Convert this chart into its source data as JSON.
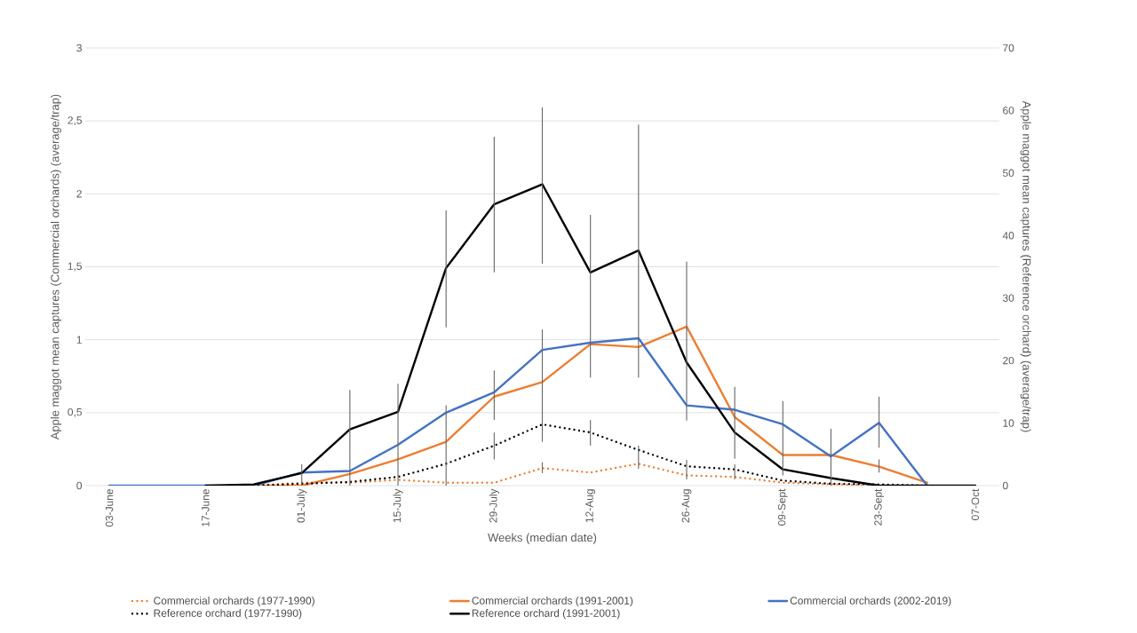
{
  "chart_data": {
    "type": "line",
    "xlabel": "Weeks (median date)",
    "ylabel": "Apple maggot mean captures (Commercial orchards) (average/trap)",
    "y2label": "Apple maggot mean captures (Reference orchard) (average/trap)",
    "categories": [
      "03-June",
      null,
      "17-June",
      null,
      "01-July",
      null,
      "15-July",
      null,
      "29-July",
      null,
      "12-Aug",
      null,
      "26-Aug",
      null,
      "09-Sept",
      null,
      "23-Sept",
      null,
      "07-Oct"
    ],
    "ylim": [
      0,
      3
    ],
    "yticks": [
      0,
      {
        "value": 0.5,
        "label": "0,5"
      },
      1,
      {
        "value": 1.5,
        "label": "1,5"
      },
      2,
      {
        "value": 2.5,
        "label": "2,5"
      },
      3
    ],
    "y2lim": [
      0,
      70
    ],
    "y2ticks": [
      0,
      10,
      20,
      30,
      40,
      50,
      60,
      70
    ],
    "grid": "y",
    "legend": "bottom",
    "series": [
      {
        "name": "Commercial orchards (1977-1990)",
        "color": "#ed7d31",
        "line_style": "dotted",
        "values": [
          null,
          null,
          null,
          0,
          0.02,
          0.02,
          0.04,
          0.02,
          0.02,
          0.12,
          0.09,
          0.15,
          0.07,
          0.06,
          0.02,
          0.01,
          0,
          null,
          null
        ],
        "errors": [
          null,
          null,
          null,
          null,
          null,
          null,
          null,
          null,
          null,
          [
            0.085,
            0.16
          ],
          null,
          null,
          null,
          null,
          null,
          null,
          null,
          null,
          null
        ]
      },
      {
        "name": "Commercial orchards (1991-2001)",
        "color": "#ed7d31",
        "line_style": "solid",
        "values": [
          null,
          null,
          null,
          0,
          0,
          0.08,
          0.18,
          0.3,
          0.61,
          0.71,
          0.97,
          0.95,
          1.09,
          0.47,
          0.21,
          0.21,
          0.13,
          0.02,
          null
        ],
        "errors": [
          null,
          null,
          null,
          null,
          null,
          null,
          null,
          [
            0,
            0.55
          ],
          [
            0.45,
            0.79
          ],
          [
            0.3,
            1.07
          ],
          null,
          null,
          null,
          null,
          null,
          null,
          [
            0.09,
            0.18
          ],
          null,
          null
        ]
      },
      {
        "name": "Commercial orchards (2002-2019)",
        "color": "#4472c4",
        "line_style": "solid",
        "values": [
          0,
          0,
          0,
          0,
          0.09,
          0.1,
          0.28,
          0.5,
          0.64,
          0.93,
          0.98,
          1.01,
          0.55,
          0.52,
          0.42,
          0.2,
          0.43,
          0,
          null
        ],
        "errors": [
          null,
          null,
          null,
          null,
          null,
          null,
          null,
          null,
          null,
          null,
          null,
          null,
          null,
          null,
          [
            0.07,
            0.58
          ],
          [
            0,
            0.39
          ],
          [
            0.26,
            0.61
          ],
          null,
          null
        ]
      },
      {
        "name": "Reference orchard (1977-1990)",
        "color": "#000000",
        "line_style": "dotted",
        "axis": "y2",
        "values": [
          null,
          null,
          null,
          0,
          0.3,
          0.6,
          1.4,
          3.5,
          6.4,
          9.8,
          8.5,
          5.7,
          3.1,
          2.6,
          0.8,
          0.3,
          0.2,
          0,
          null
        ],
        "errors": [
          null,
          null,
          null,
          null,
          null,
          null,
          null,
          null,
          [
            4.2,
            8.5
          ],
          null,
          [
            6.4,
            10.5
          ],
          [
            2.7,
            6.4
          ],
          [
            1.0,
            4.1
          ],
          [
            1.0,
            3.4
          ],
          null,
          null,
          null,
          null,
          null
        ]
      },
      {
        "name": "Reference orchard (1991-2001)",
        "color": "#000000",
        "line_style": "solid",
        "axis": "y2",
        "values": [
          null,
          null,
          0,
          0.2,
          2,
          9,
          11.8,
          34.8,
          45,
          48.2,
          34.1,
          37.6,
          19.7,
          8.5,
          2.6,
          1.2,
          0,
          0,
          0
        ],
        "errors": [
          null,
          null,
          null,
          null,
          [
            0,
            3.4
          ],
          [
            0,
            15.3
          ],
          [
            0,
            16.3
          ],
          [
            25.3,
            44.0
          ],
          [
            34.1,
            55.8
          ],
          [
            35.5,
            60.5
          ],
          [
            17.3,
            43.3
          ],
          [
            17.3,
            57.7
          ],
          [
            10.4,
            35.8
          ],
          [
            4.3,
            15.8
          ],
          null,
          null,
          null,
          null,
          null
        ]
      }
    ]
  }
}
